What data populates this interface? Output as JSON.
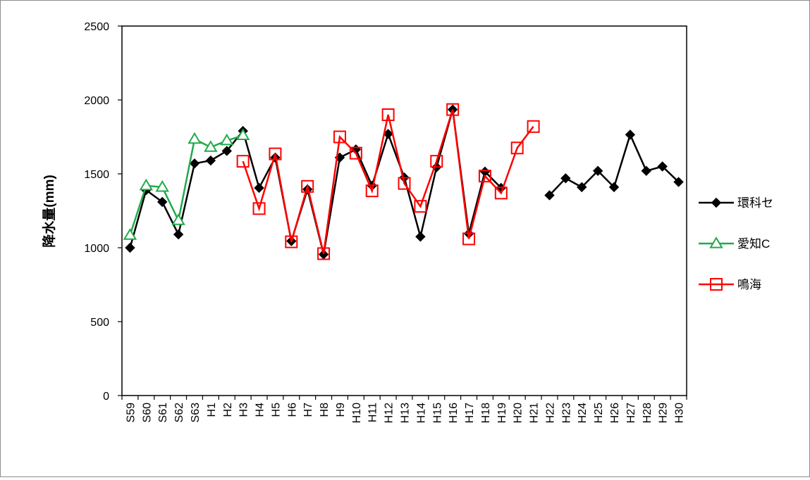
{
  "chart_data": {
    "type": "line",
    "title": "",
    "xlabel": "",
    "ylabel": "降水量(mm)",
    "ylim": [
      0,
      2500
    ],
    "yticks": [
      0,
      500,
      1000,
      1500,
      2000,
      2500
    ],
    "grid": false,
    "legend_position": "right",
    "categories": [
      "S59",
      "S60",
      "S61",
      "S62",
      "S63",
      "H1",
      "H2",
      "H3",
      "H4",
      "H5",
      "H6",
      "H7",
      "H8",
      "H9",
      "H10",
      "H11",
      "H12",
      "H13",
      "H14",
      "H15",
      "H16",
      "H17",
      "H18",
      "H19",
      "H20",
      "H21",
      "H22",
      "H23",
      "H24",
      "H25",
      "H26",
      "H27",
      "H28",
      "H29",
      "H30"
    ],
    "series": [
      {
        "name": "環科セ",
        "color": "#000000",
        "marker": "diamond",
        "segments": [
          [
            [
              0,
              1000
            ],
            [
              1,
              1390
            ],
            [
              2,
              1310
            ],
            [
              3,
              1090
            ],
            [
              4,
              1570
            ],
            [
              5,
              1590
            ],
            [
              6,
              1655
            ],
            [
              7,
              1790
            ],
            [
              8,
              1405
            ],
            [
              9,
              1610
            ],
            [
              10,
              1045
            ],
            [
              11,
              1395
            ],
            [
              12,
              955
            ],
            [
              13,
              1610
            ],
            [
              14,
              1665
            ],
            [
              15,
              1420
            ],
            [
              16,
              1770
            ],
            [
              17,
              1475
            ],
            [
              18,
              1075
            ],
            [
              19,
              1545
            ],
            [
              20,
              1935
            ],
            [
              21,
              1095
            ],
            [
              22,
              1515
            ],
            [
              23,
              1405
            ]
          ],
          [
            [
              26,
              1355
            ],
            [
              27,
              1470
            ],
            [
              28,
              1410
            ],
            [
              29,
              1520
            ],
            [
              30,
              1410
            ],
            [
              31,
              1765
            ],
            [
              32,
              1520
            ],
            [
              33,
              1550
            ],
            [
              34,
              1445
            ]
          ]
        ]
      },
      {
        "name": "愛知C",
        "color": "#22aa4c",
        "marker": "triangle",
        "segments": [
          [
            [
              0,
              1085
            ],
            [
              1,
              1420
            ],
            [
              2,
              1410
            ],
            [
              3,
              1185
            ],
            [
              4,
              1735
            ],
            [
              5,
              1680
            ],
            [
              6,
              1725
            ],
            [
              7,
              1760
            ]
          ]
        ]
      },
      {
        "name": "鳴海",
        "color": "#ff0000",
        "marker": "square",
        "segments": [
          [
            [
              7,
              1585
            ],
            [
              8,
              1265
            ],
            [
              9,
              1635
            ],
            [
              10,
              1040
            ],
            [
              11,
              1415
            ],
            [
              12,
              960
            ],
            [
              13,
              1750
            ],
            [
              14,
              1640
            ],
            [
              15,
              1385
            ],
            [
              16,
              1900
            ],
            [
              17,
              1435
            ],
            [
              18,
              1280
            ],
            [
              19,
              1585
            ],
            [
              20,
              1935
            ],
            [
              21,
              1060
            ],
            [
              22,
              1485
            ],
            [
              23,
              1370
            ],
            [
              24,
              1675
            ],
            [
              25,
              1820
            ]
          ]
        ]
      }
    ]
  }
}
